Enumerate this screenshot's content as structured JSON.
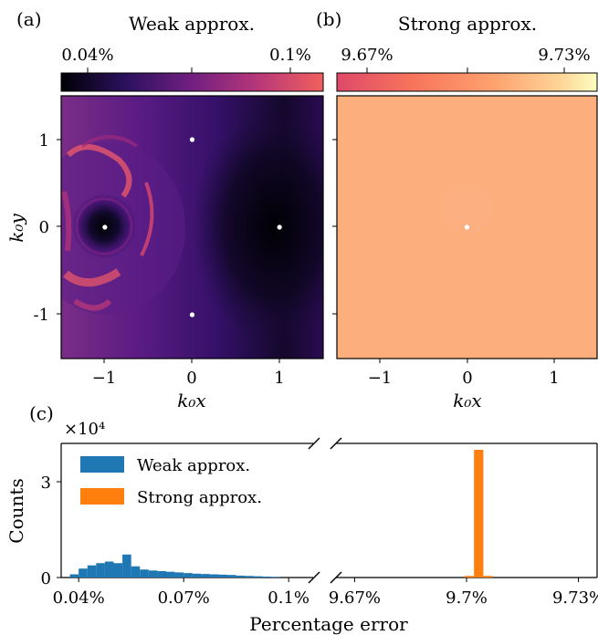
{
  "figure": {
    "panel_a": {
      "tag": "(a)",
      "title": "Weak approx.",
      "colorbar_ticks": [
        "0.04%",
        "0.1%"
      ],
      "colormap": [
        "#000004",
        "#3b0f70",
        "#8c2981",
        "#de4968",
        "#f8765c"
      ],
      "x_ticks": [
        "−1",
        "0",
        "1"
      ],
      "y_ticks": [
        "1",
        "0",
        "-1"
      ],
      "x_label": "k₀x",
      "y_label": "k₀y",
      "points": [
        [
          0,
          1
        ],
        [
          1,
          0
        ],
        [
          0,
          -1
        ],
        [
          -1,
          0
        ]
      ]
    },
    "panel_b": {
      "tag": "(b)",
      "title": "Strong approx.",
      "colorbar_ticks": [
        "9.67%",
        "9.73%"
      ],
      "colormap": [
        "#de4968",
        "#f8765c",
        "#fe9f6d",
        "#fecf92",
        "#fcfdbf"
      ],
      "fill_color": "#fcae7d",
      "x_ticks": [
        "−1",
        "0",
        "1"
      ],
      "x_label": "k₀x",
      "points": [
        [
          0,
          0
        ]
      ]
    }
  },
  "chart_data": {
    "type": "bar",
    "tag": "(c)",
    "multiplier_label": "×10⁴",
    "xlabel": "Percentage error",
    "ylabel": "Counts",
    "y_ticks": [
      "0",
      "3"
    ],
    "ylim": [
      0,
      4.2
    ],
    "left_axis": {
      "x_ticks": [
        "0.04%",
        "0.07%",
        "0.1%"
      ],
      "xlim": [
        0.035,
        0.107
      ]
    },
    "right_axis": {
      "x_ticks": [
        "9.67%",
        "9.7%",
        "9.73%"
      ],
      "xlim": [
        9.665,
        9.735
      ]
    },
    "series": [
      {
        "name": "Weak approx.",
        "color": "#1f77b4",
        "axis": "left",
        "bin_width": 0.0025,
        "bins": [
          0.0375,
          0.04,
          0.0425,
          0.045,
          0.0475,
          0.05,
          0.0525,
          0.055,
          0.0575,
          0.06,
          0.0625,
          0.065,
          0.0675,
          0.07,
          0.0725,
          0.075,
          0.0775,
          0.08,
          0.0825,
          0.085,
          0.0875,
          0.09,
          0.0925,
          0.095
        ],
        "values": [
          0.1,
          0.28,
          0.38,
          0.45,
          0.5,
          0.45,
          0.72,
          0.35,
          0.25,
          0.22,
          0.2,
          0.18,
          0.16,
          0.14,
          0.12,
          0.11,
          0.1,
          0.09,
          0.08,
          0.06,
          0.05,
          0.04,
          0.03,
          0.02
        ]
      },
      {
        "name": "Strong approx.",
        "color": "#ff7f0e",
        "axis": "right",
        "bin_width": 0.0025,
        "bins": [
          9.6995,
          9.702,
          9.7045
        ],
        "values": [
          0.05,
          4.0,
          0.05
        ]
      }
    ]
  }
}
